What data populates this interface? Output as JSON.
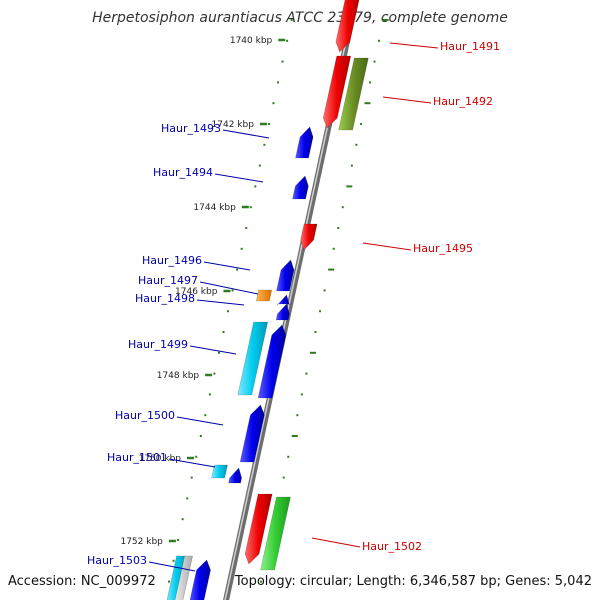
{
  "title": "Herpetosiphon aurantiacus ATCC 23779, complete genome",
  "accession": "Accession: NC_009972",
  "summary": "Topology: circular; Length: 6,346,587 bp; Genes: 5,042",
  "colors": {
    "backbone": "#8a8a8a",
    "tick": "#2e7d1e",
    "forward_label": "#cc0000",
    "reverse_label": "#0000aa"
  },
  "scale_marks": [
    {
      "label": "1740 kbp"
    },
    {
      "label": "1742 kbp"
    },
    {
      "label": "1744 kbp"
    },
    {
      "label": "1746 kbp"
    },
    {
      "label": "1748 kbp"
    },
    {
      "label": "1750 kbp"
    },
    {
      "label": "1752 kbp"
    }
  ],
  "genes": [
    {
      "name": "Haur_1491",
      "strand": "forward",
      "labeled": true
    },
    {
      "name": "Haur_1492",
      "strand": "forward",
      "labeled": true
    },
    {
      "name": "Haur_1493",
      "strand": "reverse",
      "labeled": true
    },
    {
      "name": "Haur_1494",
      "strand": "reverse",
      "labeled": true
    },
    {
      "name": "Haur_1495",
      "strand": "forward",
      "labeled": true
    },
    {
      "name": "Haur_1496",
      "strand": "reverse",
      "labeled": true
    },
    {
      "name": "Haur_1497",
      "strand": "reverse",
      "labeled": true
    },
    {
      "name": "Haur_1498",
      "strand": "reverse",
      "labeled": true
    },
    {
      "name": "Haur_1499",
      "strand": "reverse",
      "labeled": true
    },
    {
      "name": "Haur_1500",
      "strand": "reverse",
      "labeled": true
    },
    {
      "name": "Haur_1501",
      "strand": "reverse",
      "labeled": true
    },
    {
      "name": "Haur_1502",
      "strand": "forward",
      "labeled": true
    },
    {
      "name": "Haur_1503",
      "strand": "reverse",
      "labeled": true
    }
  ],
  "feature_colors": [
    "#ee0000",
    "#6b8e23",
    "#0000ee",
    "#ff8c00",
    "#00ccee",
    "#33cc33",
    "#cccccc"
  ]
}
